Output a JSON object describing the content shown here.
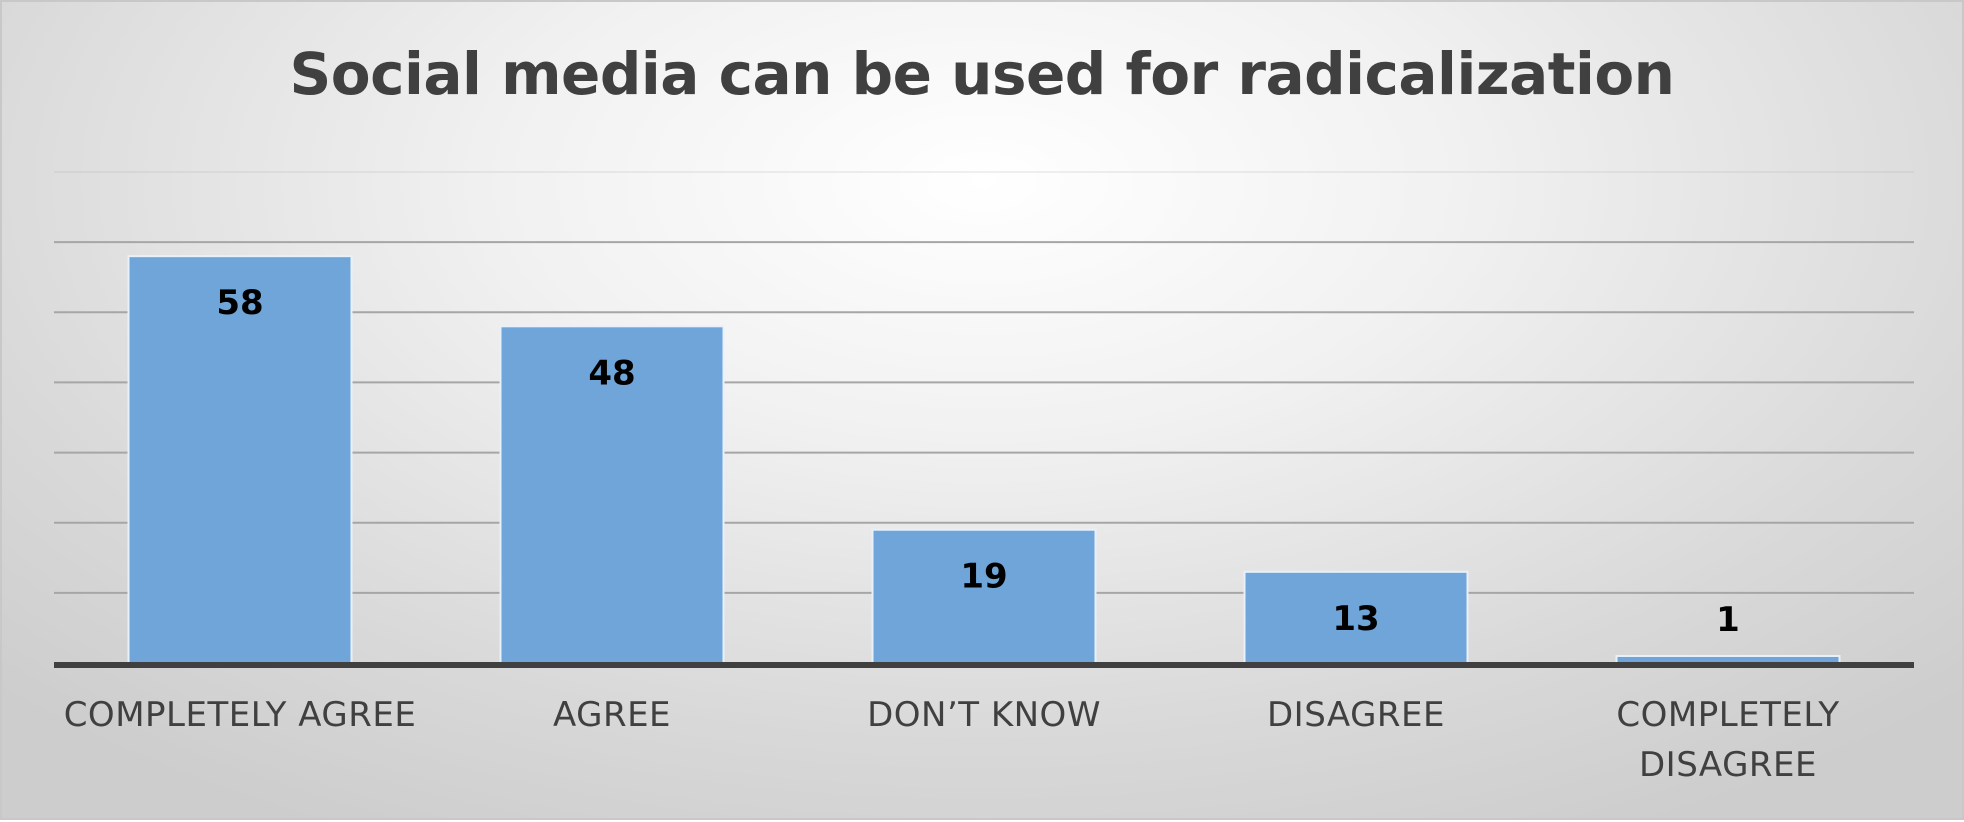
{
  "chart_data": {
    "type": "bar",
    "title": "Social media can be used for radicalization",
    "categories": [
      "COMPLETELY AGREE",
      "AGREE",
      "DON’T KNOW",
      "DISAGREE",
      "COMPLETELY DISAGREE"
    ],
    "values": [
      58,
      48,
      19,
      13,
      1
    ],
    "data_labels": [
      "58",
      "48",
      "19",
      "13",
      "1"
    ],
    "xlabel": "",
    "ylabel": "",
    "ylim": [
      0,
      70
    ],
    "y_gridline_step": 10,
    "grid": true,
    "y_tick_labels_shown": false,
    "legend": "none",
    "bar_color": "#6fa5d8",
    "bar_edge_color": "#e8f1fa",
    "gridline_color": "#a6a6a6",
    "baseline_color": "#404040",
    "text_color": "#404040",
    "data_label_color": "#000000"
  }
}
